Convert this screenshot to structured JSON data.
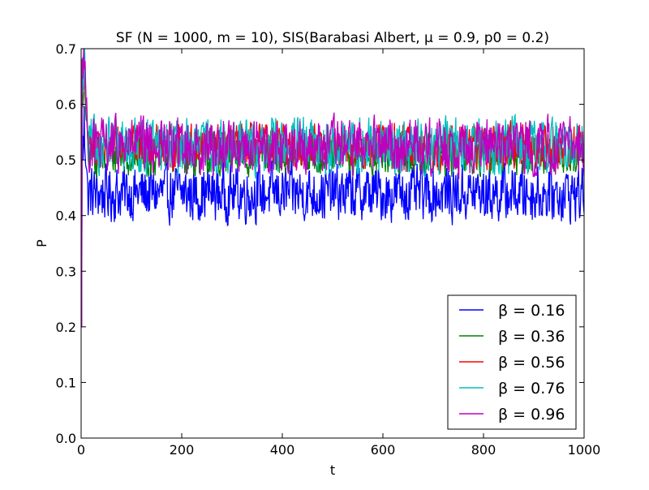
{
  "chart_data": {
    "type": "line",
    "title": "SF (N = 1000, m = 10), SIS(Barabasi Albert, μ = 0.9, p0 = 0.2)",
    "xlabel": "t",
    "ylabel": "P",
    "xlim": [
      0,
      1000
    ],
    "ylim": [
      0.0,
      0.7
    ],
    "xticks": [
      "0",
      "200",
      "400",
      "600",
      "800",
      "1000"
    ],
    "yticks": [
      "0.0",
      "0.1",
      "0.2",
      "0.3",
      "0.4",
      "0.5",
      "0.6",
      "0.7"
    ],
    "grid": false,
    "legend_position": "lower-right",
    "series": [
      {
        "name": "β = 0.16",
        "color": "#0000ff",
        "mean": 0.44,
        "amplitude": 0.045,
        "initial": 0.2,
        "peak": 0.56
      },
      {
        "name": "β = 0.36",
        "color": "#008000",
        "mean": 0.51,
        "amplitude": 0.035,
        "initial": 0.2,
        "peak": 0.66
      },
      {
        "name": "β = 0.56",
        "color": "#ff0000",
        "mean": 0.525,
        "amplitude": 0.035,
        "initial": 0.2,
        "peak": 0.68
      },
      {
        "name": "β = 0.76",
        "color": "#00bfbf",
        "mean": 0.525,
        "amplitude": 0.045,
        "initial": 0.2,
        "peak": 0.69
      },
      {
        "name": "β = 0.96",
        "color": "#bf00bf",
        "mean": 0.525,
        "amplitude": 0.045,
        "initial": 0.2,
        "peak": 0.7
      }
    ]
  }
}
